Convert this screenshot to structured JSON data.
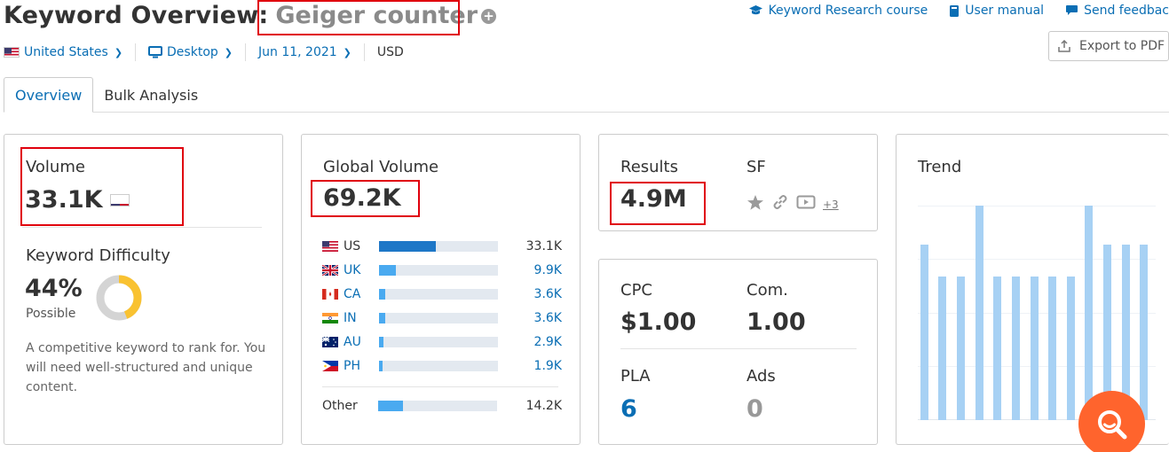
{
  "header": {
    "title_prefix": "Keyword Overview:",
    "keyword": "Geiger counter",
    "links": [
      {
        "label": "Keyword Research course",
        "icon": "graduation-cap-icon"
      },
      {
        "label": "User manual",
        "icon": "book-icon"
      },
      {
        "label": "Send feedbac",
        "icon": "speech-bubble-icon"
      }
    ],
    "export_label": "Export to PDF"
  },
  "filters": {
    "country": "United States",
    "device": "Desktop",
    "date": "Jun 11, 2021",
    "currency": "USD"
  },
  "tabs": [
    {
      "label": "Overview",
      "active": true
    },
    {
      "label": "Bulk Analysis",
      "active": false
    }
  ],
  "volume": {
    "label": "Volume",
    "value": "33.1K"
  },
  "keyword_difficulty": {
    "label": "Keyword Difficulty",
    "percent_text": "44%",
    "percent": 44,
    "level": "Possible",
    "description": [
      "A competitive keyword to rank for. You",
      "will need well-structured and unique",
      "content."
    ],
    "color": "#f9c231"
  },
  "global_volume": {
    "label": "Global Volume",
    "value": "69.2K",
    "countries": [
      {
        "code": "US",
        "value": "33.1K",
        "fill": 0.48,
        "highlight": true
      },
      {
        "code": "UK",
        "value": "9.9K",
        "fill": 0.14
      },
      {
        "code": "CA",
        "value": "3.6K",
        "fill": 0.05
      },
      {
        "code": "IN",
        "value": "3.6K",
        "fill": 0.05
      },
      {
        "code": "AU",
        "value": "2.9K",
        "fill": 0.04
      },
      {
        "code": "PH",
        "value": "1.9K",
        "fill": 0.03
      }
    ],
    "other": {
      "label": "Other",
      "value": "14.2K",
      "fill": 0.21
    }
  },
  "results": {
    "label": "Results",
    "value": "4.9M",
    "sf_label": "SF",
    "sf_more": "+3"
  },
  "metrics": {
    "cpc_label": "CPC",
    "cpc_value": "$1.00",
    "com_label": "Com.",
    "com_value": "1.00",
    "pla_label": "PLA",
    "pla_value": "6",
    "ads_label": "Ads",
    "ads_value": "0"
  },
  "trend": {
    "label": "Trend",
    "values": [
      0.82,
      0.67,
      0.67,
      1.0,
      0.67,
      0.67,
      0.67,
      0.67,
      0.67,
      1.0,
      0.82,
      0.82,
      0.82
    ]
  },
  "colors": {
    "accent": "#0a6eb4",
    "highlight_box": "#e0000d",
    "fab": "#ff642d",
    "trend_bar": "#a7d1f4"
  }
}
